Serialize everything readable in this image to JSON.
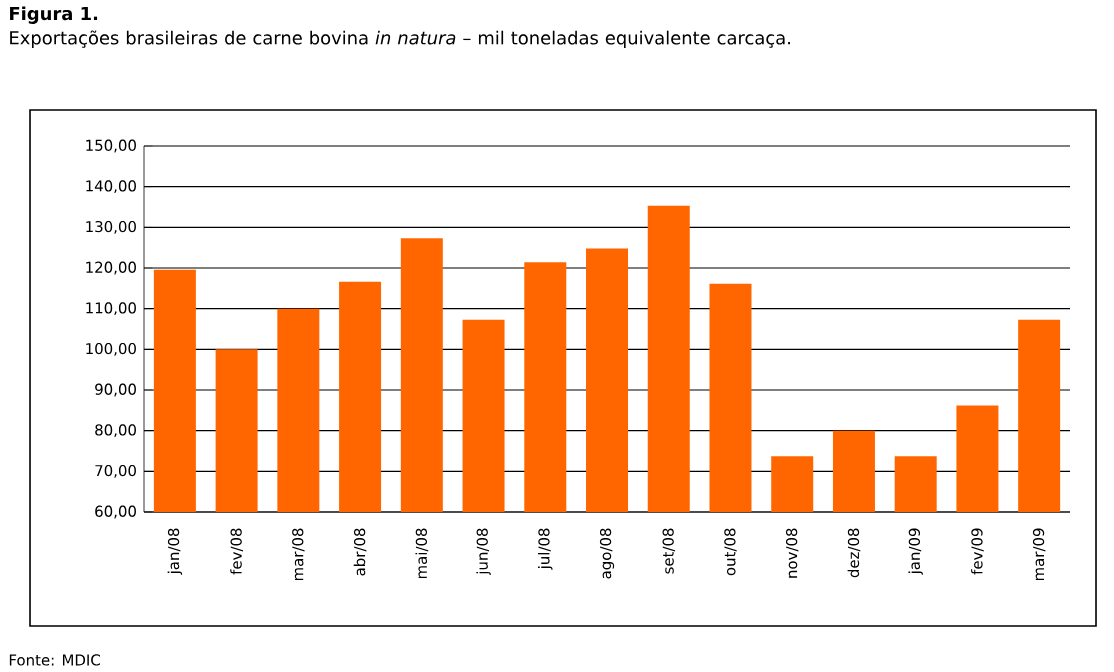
{
  "chart_data": {
    "type": "bar",
    "title": "Figura 1.",
    "subtitle": "Exportações brasileiras de carne bovina *in natura* – mil toneladas equivalente carcaça.",
    "categories": [
      "jan/08",
      "fev/08",
      "mar/08",
      "abr/08",
      "mai/08",
      "jun/08",
      "jul/08",
      "ago/08",
      "set/08",
      "out/08",
      "nov/08",
      "dez/08",
      "jan/09",
      "fev/09",
      "mar/09"
    ],
    "values": [
      119.6,
      100,
      110,
      116.6,
      127.3,
      107.3,
      121.4,
      124.8,
      135.3,
      116.1,
      73.7,
      80,
      73.7,
      86.2,
      107.3
    ],
    "color": "#ff6600",
    "ylim": [
      60,
      150
    ],
    "yticks": [
      {
        "value": 60,
        "label": "60,00"
      },
      {
        "value": 70,
        "label": "70,00"
      },
      {
        "value": 80,
        "label": "80,00"
      },
      {
        "value": 90,
        "label": "90,00"
      },
      {
        "value": 100,
        "label": "100,00"
      },
      {
        "value": 110,
        "label": "110,00"
      },
      {
        "value": 120,
        "label": "120,00"
      },
      {
        "value": 130,
        "label": "130,00"
      },
      {
        "value": 140,
        "label": "140,00"
      },
      {
        "value": 150,
        "label": "150,00"
      }
    ],
    "grid": "y",
    "annotations": [
      "Fonte: MDIC"
    ]
  }
}
